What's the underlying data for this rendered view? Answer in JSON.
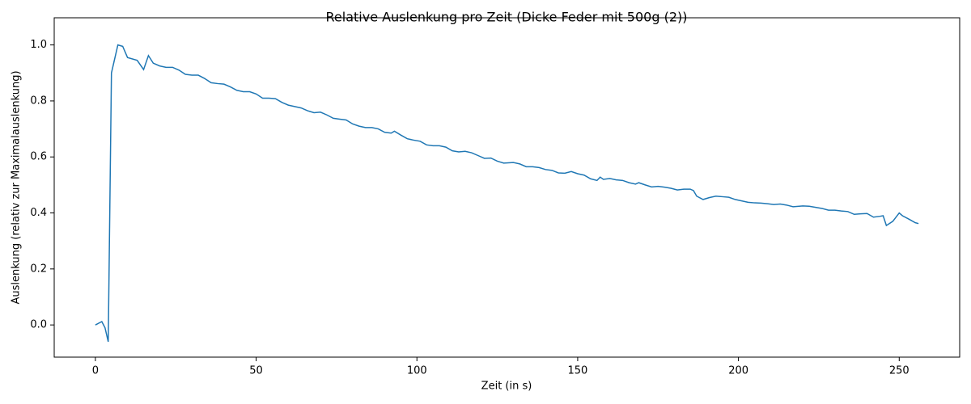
{
  "chart_data": {
    "type": "line",
    "title": "Relative Auslenkung pro Zeit (Dicke Feder mit 500g (2))",
    "xlabel": "Zeit (in s)",
    "ylabel": "Auslenkung (relativ zur Maximalauslenkung)",
    "color": "#1f77b4",
    "x": [
      0,
      2,
      3,
      4,
      5,
      7,
      8.5,
      10,
      13,
      15,
      16.5,
      18,
      20,
      22,
      24,
      26,
      28,
      30,
      32,
      34,
      36,
      38,
      40,
      42,
      44,
      46,
      48,
      50,
      52,
      54,
      56,
      58,
      60,
      62,
      64,
      66,
      68,
      70,
      72,
      74,
      76,
      78,
      80,
      82,
      84,
      86,
      88,
      90,
      92,
      93,
      95,
      97,
      99,
      101,
      103,
      105,
      107,
      109,
      111,
      113,
      115,
      117,
      119,
      121,
      123,
      125,
      127,
      130,
      132,
      134,
      136,
      138,
      140,
      142,
      144,
      146,
      148,
      150,
      152,
      154,
      156,
      157,
      158,
      160,
      162,
      164,
      166,
      168,
      169,
      171,
      173,
      175,
      177,
      179,
      181,
      183,
      185,
      186,
      187,
      189,
      191,
      193,
      195,
      197,
      199,
      201,
      203,
      205,
      207,
      209,
      211,
      213,
      215,
      217,
      220,
      222,
      224,
      226,
      228,
      230,
      232,
      234,
      236,
      238,
      240,
      242,
      244,
      245,
      246,
      248,
      250,
      251,
      253,
      255,
      256
    ],
    "values": [
      0,
      0.012,
      -0.01,
      -0.06,
      0.9,
      1.0,
      0.995,
      0.955,
      0.945,
      0.912,
      0.962,
      0.935,
      0.925,
      0.92,
      0.92,
      0.91,
      0.895,
      0.892,
      0.892,
      0.88,
      0.865,
      0.862,
      0.86,
      0.85,
      0.838,
      0.833,
      0.833,
      0.825,
      0.81,
      0.81,
      0.808,
      0.795,
      0.785,
      0.78,
      0.775,
      0.765,
      0.758,
      0.76,
      0.75,
      0.738,
      0.735,
      0.732,
      0.718,
      0.71,
      0.705,
      0.705,
      0.7,
      0.688,
      0.685,
      0.692,
      0.678,
      0.665,
      0.66,
      0.656,
      0.643,
      0.64,
      0.64,
      0.635,
      0.622,
      0.618,
      0.62,
      0.615,
      0.605,
      0.595,
      0.596,
      0.585,
      0.578,
      0.58,
      0.575,
      0.565,
      0.565,
      0.562,
      0.555,
      0.552,
      0.543,
      0.542,
      0.548,
      0.54,
      0.535,
      0.522,
      0.516,
      0.528,
      0.52,
      0.523,
      0.518,
      0.516,
      0.508,
      0.503,
      0.508,
      0.5,
      0.493,
      0.495,
      0.492,
      0.488,
      0.482,
      0.485,
      0.485,
      0.48,
      0.46,
      0.448,
      0.455,
      0.46,
      0.458,
      0.456,
      0.448,
      0.443,
      0.438,
      0.436,
      0.435,
      0.433,
      0.43,
      0.432,
      0.428,
      0.422,
      0.425,
      0.424,
      0.42,
      0.416,
      0.41,
      0.41,
      0.407,
      0.405,
      0.395,
      0.397,
      0.398,
      0.385,
      0.388,
      0.39,
      0.355,
      0.37,
      0.4,
      0.39,
      0.378,
      0.365,
      0.362
    ],
    "xlim": [
      -12.8,
      268.8
    ],
    "ylim": [
      -0.115,
      1.097
    ],
    "xticks": [
      0,
      50,
      100,
      150,
      200,
      250
    ],
    "yticks": [
      {
        "value": 0,
        "label": "0.0"
      },
      0.2,
      0.4,
      0.6,
      0.8,
      {
        "value": 1,
        "label": "1.0"
      }
    ]
  }
}
